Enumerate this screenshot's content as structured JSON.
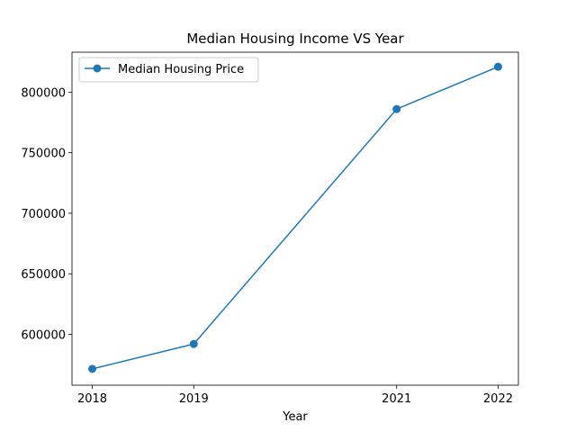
{
  "chart_data": {
    "type": "line",
    "title": "Median Housing Income VS Year",
    "xlabel": "Year",
    "ylabel": "",
    "x": [
      2018,
      2019,
      2021,
      2022
    ],
    "x_tick_labels": [
      "2018",
      "2019",
      "2021",
      "2022"
    ],
    "y_ticks": [
      600000,
      650000,
      700000,
      750000,
      800000
    ],
    "y_tick_labels": [
      "600000",
      "650000",
      "700000",
      "750000",
      "800000"
    ],
    "xlim": [
      2017.8,
      2022.2
    ],
    "ylim": [
      558000,
      833000
    ],
    "grid": false,
    "legend_position": "top-left",
    "series": [
      {
        "name": "Median Housing Price",
        "color": "#1f77b4",
        "marker": "circle",
        "values": [
          571500,
          592000,
          786000,
          821000
        ]
      }
    ]
  }
}
